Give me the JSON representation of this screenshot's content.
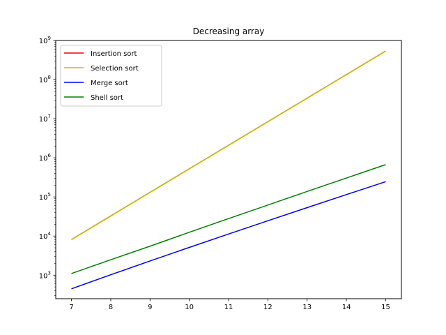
{
  "chart_data": {
    "type": "line",
    "title": "Decreasing array",
    "xlabel": "",
    "ylabel": "",
    "yscale": "log",
    "xlim": [
      6.6,
      15.4
    ],
    "ylim": [
      250,
      1000000000
    ],
    "xticks": [
      7,
      8,
      9,
      10,
      11,
      12,
      13,
      14,
      15
    ],
    "yticks": [
      {
        "value": 1000,
        "base": "10",
        "exp": "3"
      },
      {
        "value": 10000,
        "base": "10",
        "exp": "4"
      },
      {
        "value": 100000,
        "base": "10",
        "exp": "5"
      },
      {
        "value": 1000000,
        "base": "10",
        "exp": "6"
      },
      {
        "value": 10000000,
        "base": "10",
        "exp": "7"
      },
      {
        "value": 100000000,
        "base": "10",
        "exp": "8"
      },
      {
        "value": 1000000000,
        "base": "10",
        "exp": "9"
      }
    ],
    "grid": false,
    "legend_position": "top-left",
    "x": [
      7,
      8,
      9,
      10,
      11,
      12,
      13,
      14,
      15
    ],
    "series": [
      {
        "name": "Insertion sort",
        "color": "#ff0000",
        "values": [
          8128,
          32640,
          130816,
          523776,
          2096128,
          8386560,
          33550336,
          134209536,
          536854528
        ]
      },
      {
        "name": "Selection sort",
        "color": "#bfbf00",
        "values": [
          8128,
          32640,
          130816,
          523776,
          2096128,
          8386560,
          33550336,
          134209536,
          536854528
        ]
      },
      {
        "name": "Merge sort",
        "color": "#0000ff",
        "values": [
          448,
          1024,
          2304,
          5120,
          11264,
          24576,
          53248,
          114688,
          245760
        ]
      },
      {
        "name": "Shell sort",
        "color": "#008000",
        "values": [
          1100,
          2480,
          5500,
          12500,
          28000,
          62000,
          138000,
          305000,
          670000
        ]
      }
    ]
  }
}
